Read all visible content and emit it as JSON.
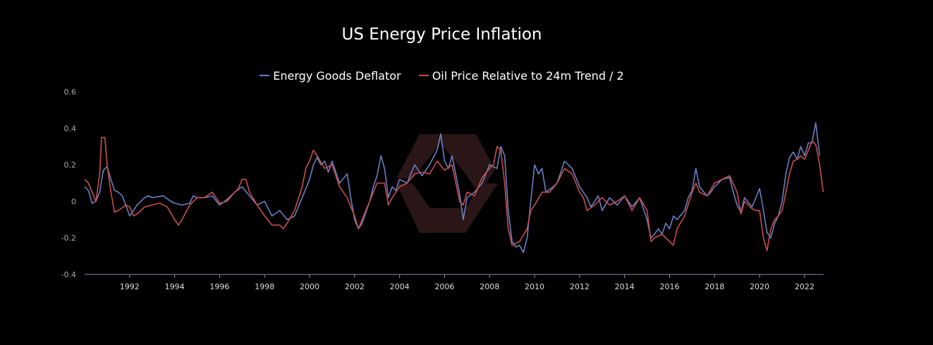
{
  "chart_data": {
    "type": "line",
    "title": "US Energy Price Inflation",
    "xlabel": "",
    "ylabel": "",
    "xlim": [
      1990.0,
      2022.85
    ],
    "ylim": [
      -0.4,
      0.6
    ],
    "yticks": [
      "-0.4",
      "-0.2",
      "0",
      "0.2",
      "0.4",
      "0.6"
    ],
    "ytick_values": [
      -0.4,
      -0.2,
      0,
      0.2,
      0.4,
      0.6
    ],
    "xticks": [
      "1992",
      "1994",
      "1996",
      "1998",
      "2000",
      "2002",
      "2004",
      "2006",
      "2008",
      "2010",
      "2012",
      "2014",
      "2016",
      "2018",
      "2020",
      "2022"
    ],
    "xtick_values": [
      1992,
      1994,
      1996,
      1998,
      2000,
      2002,
      2004,
      2006,
      2008,
      2010,
      2012,
      2014,
      2016,
      2018,
      2020,
      2022
    ],
    "grid": false,
    "legend_position": "top-center",
    "colors": {
      "background": "#000000",
      "axis": "#8a90a8",
      "watermark": "#3a1f1f"
    },
    "series": [
      {
        "name": "Energy Goods Deflator",
        "color": "#6b7fc4",
        "points": [
          [
            1990.0,
            0.08
          ],
          [
            1990.17,
            0.06
          ],
          [
            1990.33,
            -0.01
          ],
          [
            1990.5,
            0.0
          ],
          [
            1990.67,
            0.05
          ],
          [
            1990.83,
            0.17
          ],
          [
            1991.0,
            0.19
          ],
          [
            1991.17,
            0.12
          ],
          [
            1991.33,
            0.06
          ],
          [
            1991.5,
            0.05
          ],
          [
            1991.67,
            0.03
          ],
          [
            1991.83,
            -0.02
          ],
          [
            1992.0,
            -0.08
          ],
          [
            1992.17,
            -0.05
          ],
          [
            1992.33,
            -0.02
          ],
          [
            1992.5,
            0.0
          ],
          [
            1992.67,
            0.02
          ],
          [
            1992.83,
            0.03
          ],
          [
            1993.0,
            0.02
          ],
          [
            1993.5,
            0.03
          ],
          [
            1993.83,
            0.0
          ],
          [
            1994.0,
            -0.01
          ],
          [
            1994.33,
            -0.02
          ],
          [
            1994.67,
            -0.01
          ],
          [
            1994.83,
            0.03
          ],
          [
            1995.0,
            0.02
          ],
          [
            1995.33,
            0.02
          ],
          [
            1995.67,
            0.03
          ],
          [
            1996.0,
            -0.02
          ],
          [
            1996.33,
            0.01
          ],
          [
            1996.67,
            0.05
          ],
          [
            1997.0,
            0.08
          ],
          [
            1997.33,
            0.03
          ],
          [
            1997.67,
            -0.02
          ],
          [
            1998.0,
            0.0
          ],
          [
            1998.33,
            -0.08
          ],
          [
            1998.67,
            -0.05
          ],
          [
            1999.0,
            -0.1
          ],
          [
            1999.33,
            -0.08
          ],
          [
            1999.67,
            0.02
          ],
          [
            2000.0,
            0.12
          ],
          [
            2000.17,
            0.2
          ],
          [
            2000.33,
            0.24
          ],
          [
            2000.5,
            0.2
          ],
          [
            2000.67,
            0.22
          ],
          [
            2000.83,
            0.16
          ],
          [
            2001.0,
            0.22
          ],
          [
            2001.33,
            0.1
          ],
          [
            2001.67,
            0.15
          ],
          [
            2001.83,
            0.02
          ],
          [
            2002.0,
            -0.1
          ],
          [
            2002.17,
            -0.15
          ],
          [
            2002.33,
            -0.12
          ],
          [
            2002.67,
            0.0
          ],
          [
            2002.83,
            0.08
          ],
          [
            2003.0,
            0.14
          ],
          [
            2003.17,
            0.25
          ],
          [
            2003.33,
            0.18
          ],
          [
            2003.5,
            0.02
          ],
          [
            2003.67,
            0.08
          ],
          [
            2003.83,
            0.06
          ],
          [
            2004.0,
            0.12
          ],
          [
            2004.33,
            0.1
          ],
          [
            2004.67,
            0.2
          ],
          [
            2005.0,
            0.14
          ],
          [
            2005.33,
            0.2
          ],
          [
            2005.67,
            0.28
          ],
          [
            2005.83,
            0.37
          ],
          [
            2006.0,
            0.22
          ],
          [
            2006.17,
            0.18
          ],
          [
            2006.33,
            0.25
          ],
          [
            2006.67,
            0.04
          ],
          [
            2006.83,
            -0.1
          ],
          [
            2007.0,
            0.02
          ],
          [
            2007.33,
            0.05
          ],
          [
            2007.67,
            0.1
          ],
          [
            2008.0,
            0.2
          ],
          [
            2008.33,
            0.18
          ],
          [
            2008.5,
            0.3
          ],
          [
            2008.67,
            0.25
          ],
          [
            2008.83,
            -0.05
          ],
          [
            2009.0,
            -0.22
          ],
          [
            2009.17,
            -0.25
          ],
          [
            2009.33,
            -0.24
          ],
          [
            2009.5,
            -0.28
          ],
          [
            2009.67,
            -0.2
          ],
          [
            2009.83,
            0.0
          ],
          [
            2010.0,
            0.2
          ],
          [
            2010.17,
            0.15
          ],
          [
            2010.33,
            0.18
          ],
          [
            2010.5,
            0.05
          ],
          [
            2010.83,
            0.08
          ],
          [
            2011.0,
            0.1
          ],
          [
            2011.33,
            0.22
          ],
          [
            2011.67,
            0.18
          ],
          [
            2012.0,
            0.08
          ],
          [
            2012.17,
            0.05
          ],
          [
            2012.33,
            0.02
          ],
          [
            2012.5,
            -0.03
          ],
          [
            2012.67,
            0.0
          ],
          [
            2012.83,
            0.03
          ],
          [
            2013.0,
            -0.05
          ],
          [
            2013.33,
            0.02
          ],
          [
            2013.67,
            -0.02
          ],
          [
            2014.0,
            0.03
          ],
          [
            2014.33,
            -0.03
          ],
          [
            2014.67,
            0.02
          ],
          [
            2015.0,
            -0.1
          ],
          [
            2015.17,
            -0.2
          ],
          [
            2015.33,
            -0.18
          ],
          [
            2015.5,
            -0.15
          ],
          [
            2015.67,
            -0.18
          ],
          [
            2015.83,
            -0.12
          ],
          [
            2016.0,
            -0.15
          ],
          [
            2016.17,
            -0.08
          ],
          [
            2016.33,
            -0.1
          ],
          [
            2016.67,
            -0.05
          ],
          [
            2016.83,
            0.02
          ],
          [
            2017.0,
            0.06
          ],
          [
            2017.17,
            0.18
          ],
          [
            2017.33,
            0.08
          ],
          [
            2017.67,
            0.03
          ],
          [
            2017.83,
            0.05
          ],
          [
            2018.0,
            0.08
          ],
          [
            2018.33,
            0.12
          ],
          [
            2018.67,
            0.13
          ],
          [
            2018.83,
            0.05
          ],
          [
            2019.0,
            -0.02
          ],
          [
            2019.17,
            -0.06
          ],
          [
            2019.33,
            0.02
          ],
          [
            2019.67,
            -0.03
          ],
          [
            2019.83,
            0.02
          ],
          [
            2020.0,
            0.07
          ],
          [
            2020.17,
            -0.05
          ],
          [
            2020.33,
            -0.17
          ],
          [
            2020.5,
            -0.2
          ],
          [
            2020.67,
            -0.12
          ],
          [
            2020.83,
            -0.08
          ],
          [
            2021.0,
            0.0
          ],
          [
            2021.17,
            0.15
          ],
          [
            2021.33,
            0.24
          ],
          [
            2021.5,
            0.27
          ],
          [
            2021.67,
            0.23
          ],
          [
            2021.83,
            0.3
          ],
          [
            2022.0,
            0.25
          ],
          [
            2022.17,
            0.32
          ],
          [
            2022.33,
            0.32
          ],
          [
            2022.5,
            0.43
          ],
          [
            2022.67,
            0.25
          ]
        ]
      },
      {
        "name": "Oil Price Relative to 24m Trend / 2",
        "color": "#c94e4e",
        "points": [
          [
            1990.0,
            0.12
          ],
          [
            1990.17,
            0.1
          ],
          [
            1990.33,
            0.05
          ],
          [
            1990.5,
            0.0
          ],
          [
            1990.67,
            0.15
          ],
          [
            1990.75,
            0.35
          ],
          [
            1990.9,
            0.35
          ],
          [
            1991.0,
            0.2
          ],
          [
            1991.17,
            0.05
          ],
          [
            1991.33,
            -0.06
          ],
          [
            1991.5,
            -0.05
          ],
          [
            1991.83,
            -0.02
          ],
          [
            1992.0,
            -0.03
          ],
          [
            1992.17,
            -0.08
          ],
          [
            1992.33,
            -0.07
          ],
          [
            1992.67,
            -0.03
          ],
          [
            1993.0,
            -0.02
          ],
          [
            1993.33,
            -0.01
          ],
          [
            1993.67,
            -0.03
          ],
          [
            1994.0,
            -0.1
          ],
          [
            1994.17,
            -0.13
          ],
          [
            1994.33,
            -0.1
          ],
          [
            1994.67,
            -0.02
          ],
          [
            1995.0,
            0.02
          ],
          [
            1995.33,
            0.02
          ],
          [
            1995.67,
            0.05
          ],
          [
            1996.0,
            -0.01
          ],
          [
            1996.33,
            0.0
          ],
          [
            1996.67,
            0.05
          ],
          [
            1996.83,
            0.07
          ],
          [
            1997.0,
            0.12
          ],
          [
            1997.17,
            0.12
          ],
          [
            1997.33,
            0.05
          ],
          [
            1997.67,
            -0.02
          ],
          [
            1998.0,
            -0.08
          ],
          [
            1998.33,
            -0.13
          ],
          [
            1998.67,
            -0.13
          ],
          [
            1998.83,
            -0.15
          ],
          [
            1999.0,
            -0.12
          ],
          [
            1999.33,
            -0.05
          ],
          [
            1999.67,
            0.08
          ],
          [
            1999.83,
            0.18
          ],
          [
            2000.0,
            0.22
          ],
          [
            2000.17,
            0.28
          ],
          [
            2000.33,
            0.25
          ],
          [
            2000.67,
            0.18
          ],
          [
            2001.0,
            0.2
          ],
          [
            2001.33,
            0.08
          ],
          [
            2001.67,
            0.02
          ],
          [
            2002.0,
            -0.08
          ],
          [
            2002.17,
            -0.15
          ],
          [
            2002.33,
            -0.1
          ],
          [
            2002.67,
            0.0
          ],
          [
            2002.83,
            0.05
          ],
          [
            2003.0,
            0.1
          ],
          [
            2003.33,
            0.1
          ],
          [
            2003.5,
            -0.02
          ],
          [
            2003.67,
            0.02
          ],
          [
            2004.0,
            0.08
          ],
          [
            2004.33,
            0.1
          ],
          [
            2004.67,
            0.15
          ],
          [
            2005.0,
            0.16
          ],
          [
            2005.33,
            0.15
          ],
          [
            2005.67,
            0.22
          ],
          [
            2006.0,
            0.17
          ],
          [
            2006.33,
            0.2
          ],
          [
            2006.67,
            0.0
          ],
          [
            2006.83,
            -0.02
          ],
          [
            2007.0,
            0.05
          ],
          [
            2007.33,
            0.03
          ],
          [
            2007.67,
            0.13
          ],
          [
            2008.0,
            0.18
          ],
          [
            2008.17,
            0.2
          ],
          [
            2008.33,
            0.3
          ],
          [
            2008.5,
            0.28
          ],
          [
            2008.67,
            0.1
          ],
          [
            2008.83,
            -0.15
          ],
          [
            2009.0,
            -0.24
          ],
          [
            2009.33,
            -0.22
          ],
          [
            2009.67,
            -0.15
          ],
          [
            2009.83,
            -0.05
          ],
          [
            2010.0,
            -0.02
          ],
          [
            2010.33,
            0.05
          ],
          [
            2010.67,
            0.05
          ],
          [
            2011.0,
            0.1
          ],
          [
            2011.33,
            0.18
          ],
          [
            2011.67,
            0.15
          ],
          [
            2012.0,
            0.05
          ],
          [
            2012.17,
            0.02
          ],
          [
            2012.33,
            -0.05
          ],
          [
            2012.67,
            -0.02
          ],
          [
            2013.0,
            0.02
          ],
          [
            2013.33,
            -0.02
          ],
          [
            2013.67,
            0.0
          ],
          [
            2014.0,
            0.03
          ],
          [
            2014.33,
            -0.05
          ],
          [
            2014.67,
            0.02
          ],
          [
            2015.0,
            -0.05
          ],
          [
            2015.17,
            -0.22
          ],
          [
            2015.33,
            -0.2
          ],
          [
            2015.67,
            -0.18
          ],
          [
            2016.0,
            -0.22
          ],
          [
            2016.17,
            -0.24
          ],
          [
            2016.33,
            -0.15
          ],
          [
            2016.67,
            -0.08
          ],
          [
            2017.0,
            0.05
          ],
          [
            2017.17,
            0.1
          ],
          [
            2017.33,
            0.05
          ],
          [
            2017.67,
            0.03
          ],
          [
            2018.0,
            0.1
          ],
          [
            2018.33,
            0.12
          ],
          [
            2018.67,
            0.14
          ],
          [
            2019.0,
            0.05
          ],
          [
            2019.17,
            -0.07
          ],
          [
            2019.33,
            0.0
          ],
          [
            2019.67,
            -0.04
          ],
          [
            2019.83,
            -0.05
          ],
          [
            2020.0,
            -0.05
          ],
          [
            2020.17,
            -0.2
          ],
          [
            2020.33,
            -0.27
          ],
          [
            2020.5,
            -0.15
          ],
          [
            2020.67,
            -0.1
          ],
          [
            2020.83,
            -0.08
          ],
          [
            2021.0,
            -0.05
          ],
          [
            2021.17,
            0.05
          ],
          [
            2021.33,
            0.15
          ],
          [
            2021.5,
            0.22
          ],
          [
            2021.67,
            0.23
          ],
          [
            2021.83,
            0.25
          ],
          [
            2022.0,
            0.23
          ],
          [
            2022.17,
            0.28
          ],
          [
            2022.33,
            0.33
          ],
          [
            2022.5,
            0.31
          ],
          [
            2022.67,
            0.2
          ],
          [
            2022.83,
            0.05
          ]
        ]
      }
    ]
  }
}
